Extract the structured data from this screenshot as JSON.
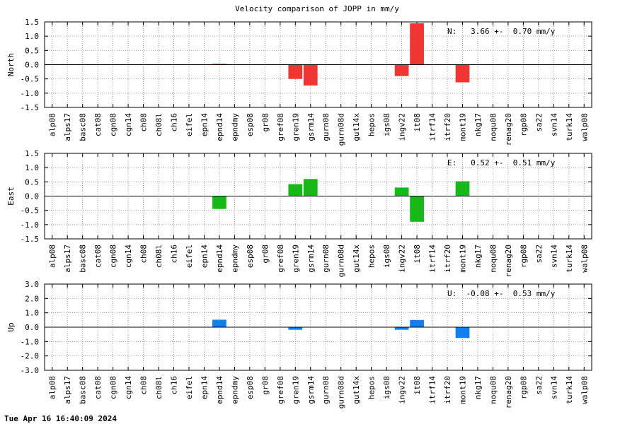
{
  "title": "Velocity comparison of JOPP in mm/y",
  "footer": "Tue Apr 16 16:40:09 2024",
  "chart_data": [
    {
      "type": "bar",
      "ylabel": "North",
      "ylim": [
        -1.5,
        1.5
      ],
      "yticks": [
        "1.5",
        "1.0",
        "0.5",
        "0.0",
        "-0.5",
        "-1.0",
        "-1.5"
      ],
      "color": "#f03535",
      "stat": "N:   3.66 +-  0.70 mm/y",
      "grid": true,
      "categories": [
        "alp08",
        "alps17",
        "basc08",
        "cat08",
        "cgn08",
        "cgn14",
        "ch08",
        "ch08l",
        "ch16",
        "eifel",
        "epn14",
        "epnd14",
        "epndmy",
        "esp08",
        "gr08",
        "gref08",
        "gren19",
        "gsrm14",
        "gurn08",
        "gurn08d",
        "gut14x",
        "hepos",
        "igs08",
        "ingv22",
        "it08",
        "itrf14",
        "itrf20",
        "mont19",
        "nkg17",
        "noqu08",
        "renag20",
        "rgp08",
        "sa22",
        "svn14",
        "turk14",
        "walp08"
      ],
      "values": [
        0,
        0,
        0,
        0,
        0,
        0,
        0,
        0,
        0,
        0,
        0,
        0.03,
        0,
        0,
        0,
        0,
        -0.5,
        -0.73,
        0,
        0,
        0,
        0,
        0,
        -0.4,
        1.45,
        0,
        0,
        -0.62,
        0,
        0,
        0,
        0,
        0,
        0,
        0,
        0
      ]
    },
    {
      "type": "bar",
      "ylabel": "East",
      "ylim": [
        -1.5,
        1.5
      ],
      "yticks": [
        "1.5",
        "1.0",
        "0.5",
        "0.0",
        "-0.5",
        "-1.0",
        "-1.5"
      ],
      "color": "#18b818",
      "stat": "E:   0.52 +-  0.51 mm/y",
      "grid": true,
      "categories": [
        "alp08",
        "alps17",
        "basc08",
        "cat08",
        "cgn08",
        "cgn14",
        "ch08",
        "ch08l",
        "ch16",
        "eifel",
        "epn14",
        "epnd14",
        "epndmy",
        "esp08",
        "gr08",
        "gref08",
        "gren19",
        "gsrm14",
        "gurn08",
        "gurn08d",
        "gut14x",
        "hepos",
        "igs08",
        "ingv22",
        "it08",
        "itrf14",
        "itrf20",
        "mont19",
        "nkg17",
        "noqu08",
        "renag20",
        "rgp08",
        "sa22",
        "svn14",
        "turk14",
        "walp08"
      ],
      "values": [
        0,
        0,
        0,
        0,
        0,
        0,
        0,
        0,
        0,
        0,
        0,
        -0.45,
        0,
        0,
        0,
        0,
        0.42,
        0.6,
        0,
        0,
        0,
        0,
        0,
        0.3,
        -0.9,
        0,
        0,
        0.52,
        0,
        0,
        0,
        0,
        0,
        0,
        0,
        0
      ]
    },
    {
      "type": "bar",
      "ylabel": "Up",
      "ylim": [
        -3.0,
        3.0
      ],
      "yticks": [
        "3.0",
        "2.0",
        "1.0",
        "0.0",
        "-1.0",
        "-2.0",
        "-3.0"
      ],
      "color": "#1080f0",
      "stat": "U:  -0.08 +-  0.53 mm/y",
      "grid": true,
      "categories": [
        "alp08",
        "alps17",
        "basc08",
        "cat08",
        "cgn08",
        "cgn14",
        "ch08",
        "ch08l",
        "ch16",
        "eifel",
        "epn14",
        "epnd14",
        "epndmy",
        "esp08",
        "gr08",
        "gref08",
        "gren19",
        "gsrm14",
        "gurn08",
        "gurn08d",
        "gut14x",
        "hepos",
        "igs08",
        "ingv22",
        "it08",
        "itrf14",
        "itrf20",
        "mont19",
        "nkg17",
        "noqu08",
        "renag20",
        "rgp08",
        "sa22",
        "svn14",
        "turk14",
        "walp08"
      ],
      "values": [
        0,
        0,
        0,
        0,
        0,
        0,
        0,
        0,
        0,
        0,
        0,
        0.52,
        0,
        0,
        0,
        0,
        -0.18,
        0,
        0,
        0,
        0,
        0,
        0,
        -0.18,
        0.5,
        0,
        0,
        -0.75,
        0,
        0,
        0,
        0,
        0,
        0,
        0,
        0
      ]
    }
  ]
}
